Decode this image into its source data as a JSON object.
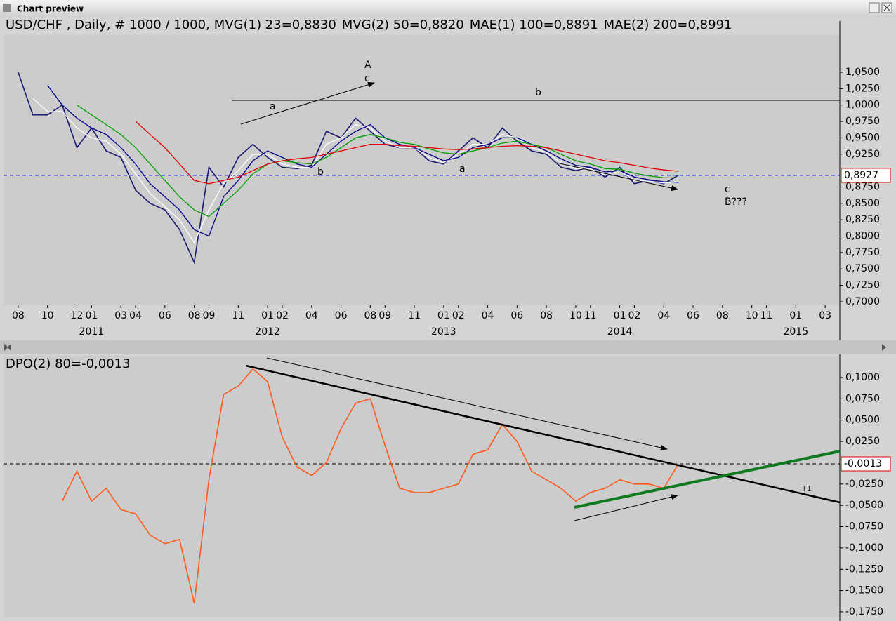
{
  "window": {
    "title": "Chart preview"
  },
  "chart_data": [
    {
      "type": "line",
      "title": "USD/CHF , Daily, # 1000 / 1000,",
      "x": [
        "2010-08",
        "2010-09",
        "2010-10",
        "2010-11",
        "2010-12",
        "2011-01",
        "2011-02",
        "2011-03",
        "2011-04",
        "2011-05",
        "2011-06",
        "2011-07",
        "2011-08",
        "2011-09",
        "2011-10",
        "2011-11",
        "2011-12",
        "2012-01",
        "2012-02",
        "2012-03",
        "2012-04",
        "2012-05",
        "2012-06",
        "2012-07",
        "2012-08",
        "2012-09",
        "2012-10",
        "2012-11",
        "2012-12",
        "2013-01",
        "2013-02",
        "2013-03",
        "2013-04",
        "2013-05",
        "2013-06",
        "2013-07",
        "2013-08",
        "2013-09",
        "2013-10",
        "2013-11",
        "2013-12",
        "2014-01",
        "2014-02",
        "2014-03",
        "2014-04",
        "2014-05"
      ],
      "series": [
        {
          "color": "#1a1a70",
          "values": [
            1.05,
            0.985,
            0.985,
            1.0,
            0.935,
            0.965,
            0.93,
            0.92,
            0.87,
            0.85,
            0.84,
            0.81,
            0.76,
            0.905,
            0.875,
            0.92,
            0.94,
            0.92,
            0.905,
            0.903,
            0.908,
            0.96,
            0.95,
            0.98,
            0.96,
            0.94,
            0.935,
            0.935,
            0.915,
            0.91,
            0.93,
            0.95,
            0.935,
            0.965,
            0.945,
            0.93,
            0.925,
            0.905,
            0.9,
            0.905,
            0.89,
            0.905,
            0.88,
            0.885,
            0.88,
            0.893
          ]
        },
        {
          "name": "MVG(1) 23=0,8830",
          "color": "#ffffff",
          "values": [
            null,
            1.01,
            0.99,
            0.99,
            0.965,
            0.95,
            0.945,
            0.925,
            0.895,
            0.865,
            0.845,
            0.825,
            0.79,
            0.84,
            0.88,
            0.9,
            0.925,
            0.925,
            0.91,
            0.905,
            0.905,
            0.94,
            0.95,
            0.97,
            0.965,
            0.945,
            0.935,
            0.935,
            0.92,
            0.912,
            0.925,
            0.94,
            0.94,
            0.955,
            0.95,
            0.935,
            0.928,
            0.912,
            0.903,
            0.903,
            0.893,
            0.9,
            0.885,
            0.884,
            0.881,
            0.883
          ]
        },
        {
          "name": "MVG(2) 50=0,8820",
          "color": "#00008b",
          "values": [
            null,
            null,
            1.03,
            1.0,
            0.98,
            0.965,
            0.955,
            0.935,
            0.91,
            0.88,
            0.86,
            0.84,
            0.81,
            0.8,
            0.86,
            0.885,
            0.915,
            0.93,
            0.92,
            0.91,
            0.905,
            0.925,
            0.945,
            0.96,
            0.97,
            0.95,
            0.94,
            0.935,
            0.925,
            0.915,
            0.92,
            0.935,
            0.94,
            0.95,
            0.95,
            0.94,
            0.93,
            0.918,
            0.908,
            0.905,
            0.898,
            0.9,
            0.89,
            0.886,
            0.883,
            0.882
          ]
        },
        {
          "name": "MAE(1) 100=0,8891",
          "color": "#00a000",
          "values": [
            null,
            null,
            null,
            null,
            1.0,
            0.985,
            0.97,
            0.955,
            0.935,
            0.91,
            0.885,
            0.86,
            0.84,
            0.83,
            0.85,
            0.87,
            0.895,
            0.91,
            0.915,
            0.912,
            0.91,
            0.92,
            0.935,
            0.95,
            0.955,
            0.95,
            0.943,
            0.94,
            0.933,
            0.927,
            0.925,
            0.93,
            0.935,
            0.942,
            0.945,
            0.94,
            0.935,
            0.925,
            0.915,
            0.91,
            0.903,
            0.902,
            0.896,
            0.892,
            0.889,
            0.889
          ]
        },
        {
          "name": "MAE(2) 200=0,8991",
          "color": "#e00000",
          "values": [
            null,
            null,
            null,
            null,
            null,
            null,
            null,
            null,
            0.975,
            0.955,
            0.935,
            0.91,
            0.885,
            0.88,
            0.885,
            0.89,
            0.9,
            0.91,
            0.915,
            0.918,
            0.92,
            0.925,
            0.93,
            0.935,
            0.94,
            0.94,
            0.938,
            0.937,
            0.935,
            0.933,
            0.932,
            0.933,
            0.935,
            0.937,
            0.938,
            0.937,
            0.935,
            0.93,
            0.925,
            0.92,
            0.915,
            0.912,
            0.908,
            0.904,
            0.901,
            0.899
          ]
        }
      ],
      "xlim": [
        "2010-07",
        "2015-04"
      ],
      "xticks": [
        {
          "value": "2010-08",
          "label": "08"
        },
        {
          "value": "2010-10",
          "label": "10"
        },
        {
          "value": "2010-12",
          "label": "12"
        },
        {
          "value": "2011-01",
          "label": "01"
        },
        {
          "value": "2011-03",
          "label": "03"
        },
        {
          "value": "2011-04",
          "label": "04"
        },
        {
          "value": "2011-06",
          "label": "06"
        },
        {
          "value": "2011-08",
          "label": "08"
        },
        {
          "value": "2011-09",
          "label": "09"
        },
        {
          "value": "2011-11",
          "label": "11"
        },
        {
          "value": "2012-01",
          "label": "01"
        },
        {
          "value": "2012-02",
          "label": "02"
        },
        {
          "value": "2012-04",
          "label": "04"
        },
        {
          "value": "2012-06",
          "label": "06"
        },
        {
          "value": "2012-08",
          "label": "08"
        },
        {
          "value": "2012-09",
          "label": "09"
        },
        {
          "value": "2012-11",
          "label": "11"
        },
        {
          "value": "2013-01",
          "label": "01"
        },
        {
          "value": "2013-02",
          "label": "02"
        },
        {
          "value": "2013-04",
          "label": "04"
        },
        {
          "value": "2013-06",
          "label": "06"
        },
        {
          "value": "2013-08",
          "label": "08"
        },
        {
          "value": "2013-10",
          "label": "10"
        },
        {
          "value": "2013-11",
          "label": "11"
        },
        {
          "value": "2014-01",
          "label": "01"
        },
        {
          "value": "2014-02",
          "label": "02"
        },
        {
          "value": "2014-04",
          "label": "04"
        },
        {
          "value": "2014-06",
          "label": "06"
        },
        {
          "value": "2014-08",
          "label": "08"
        },
        {
          "value": "2014-10",
          "label": "10"
        },
        {
          "value": "2014-11",
          "label": "11"
        },
        {
          "value": "2015-01",
          "label": "01"
        },
        {
          "value": "2015-03",
          "label": "03"
        }
      ],
      "year_labels": [
        {
          "value": "2011-01",
          "label": "2011"
        },
        {
          "value": "2012-01",
          "label": "2012"
        },
        {
          "value": "2013-01",
          "label": "2013"
        },
        {
          "value": "2014-01",
          "label": "2014"
        },
        {
          "value": "2015-01",
          "label": "2015"
        }
      ],
      "ylim": [
        0.6946,
        1.1067
      ],
      "yticks": [
        {
          "value": 1.05,
          "label": "1,0500"
        },
        {
          "value": 1.025,
          "label": "1,0250"
        },
        {
          "value": 1.0,
          "label": "1,0000"
        },
        {
          "value": 0.975,
          "label": "0,9750"
        },
        {
          "value": 0.95,
          "label": "0,9500"
        },
        {
          "value": 0.925,
          "label": "0,9250"
        },
        {
          "value": 0.875,
          "label": "0,8750"
        },
        {
          "value": 0.85,
          "label": "0,8500"
        },
        {
          "value": 0.825,
          "label": "0,8250"
        },
        {
          "value": 0.8,
          "label": "0,8000"
        },
        {
          "value": 0.775,
          "label": "0,7750"
        },
        {
          "value": 0.75,
          "label": "0,7500"
        },
        {
          "value": 0.725,
          "label": "0,7250"
        },
        {
          "value": 0.7,
          "label": "0,7000"
        }
      ],
      "last_value": {
        "value": 0.8927,
        "label": "0,8927"
      },
      "last_color": "#0000cc",
      "annotations": [
        "A",
        "c",
        "a",
        "b",
        "b",
        "a",
        "c",
        "B???"
      ]
    },
    {
      "type": "line",
      "title": "DPO(2) 80=-0,0013",
      "x": [
        "2010-08",
        "2010-09",
        "2010-10",
        "2010-11",
        "2010-12",
        "2011-01",
        "2011-02",
        "2011-03",
        "2011-04",
        "2011-05",
        "2011-06",
        "2011-07",
        "2011-08",
        "2011-09",
        "2011-10",
        "2011-11",
        "2011-12",
        "2012-01",
        "2012-02",
        "2012-03",
        "2012-04",
        "2012-05",
        "2012-06",
        "2012-07",
        "2012-08",
        "2012-09",
        "2012-10",
        "2012-11",
        "2012-12",
        "2013-01",
        "2013-02",
        "2013-03",
        "2013-04",
        "2013-05",
        "2013-06",
        "2013-07",
        "2013-08",
        "2013-09",
        "2013-10",
        "2013-11",
        "2013-12",
        "2014-01",
        "2014-02",
        "2014-03",
        "2014-04",
        "2014-05"
      ],
      "series": [
        {
          "color": "#ff5a1e",
          "values": [
            null,
            null,
            null,
            -0.045,
            -0.01,
            -0.045,
            -0.03,
            -0.055,
            -0.06,
            -0.085,
            -0.095,
            -0.09,
            -0.165,
            -0.02,
            0.08,
            0.09,
            0.11,
            0.095,
            0.03,
            -0.005,
            -0.015,
            0.0,
            0.04,
            0.07,
            0.075,
            0.02,
            -0.03,
            -0.035,
            -0.035,
            -0.03,
            -0.025,
            0.01,
            0.015,
            0.045,
            0.025,
            -0.01,
            -0.02,
            -0.03,
            -0.045,
            -0.035,
            -0.03,
            -0.02,
            -0.025,
            -0.025,
            -0.03,
            -0.0013
          ]
        }
      ],
      "xlim": [
        "2010-07",
        "2015-04"
      ],
      "ylim": [
        -0.1816,
        0.1255
      ],
      "yticks": [
        {
          "value": 0.1,
          "label": "0,1000"
        },
        {
          "value": 0.075,
          "label": "0,0750"
        },
        {
          "value": 0.05,
          "label": "0,0500"
        },
        {
          "value": 0.025,
          "label": "0,0250"
        },
        {
          "value": -0.025,
          "label": "-0,0250"
        },
        {
          "value": -0.05,
          "label": "-0,0500"
        },
        {
          "value": -0.075,
          "label": "-0,0750"
        },
        {
          "value": -0.1,
          "label": "-0,1000"
        },
        {
          "value": -0.125,
          "label": "-0,1250"
        },
        {
          "value": -0.15,
          "label": "-0,1500"
        },
        {
          "value": -0.175,
          "label": "-0,1750"
        }
      ],
      "last_value": {
        "value": -0.0013,
        "label": "-0,0013"
      },
      "last_color": "#000000",
      "annotations": [
        "T1"
      ]
    }
  ]
}
